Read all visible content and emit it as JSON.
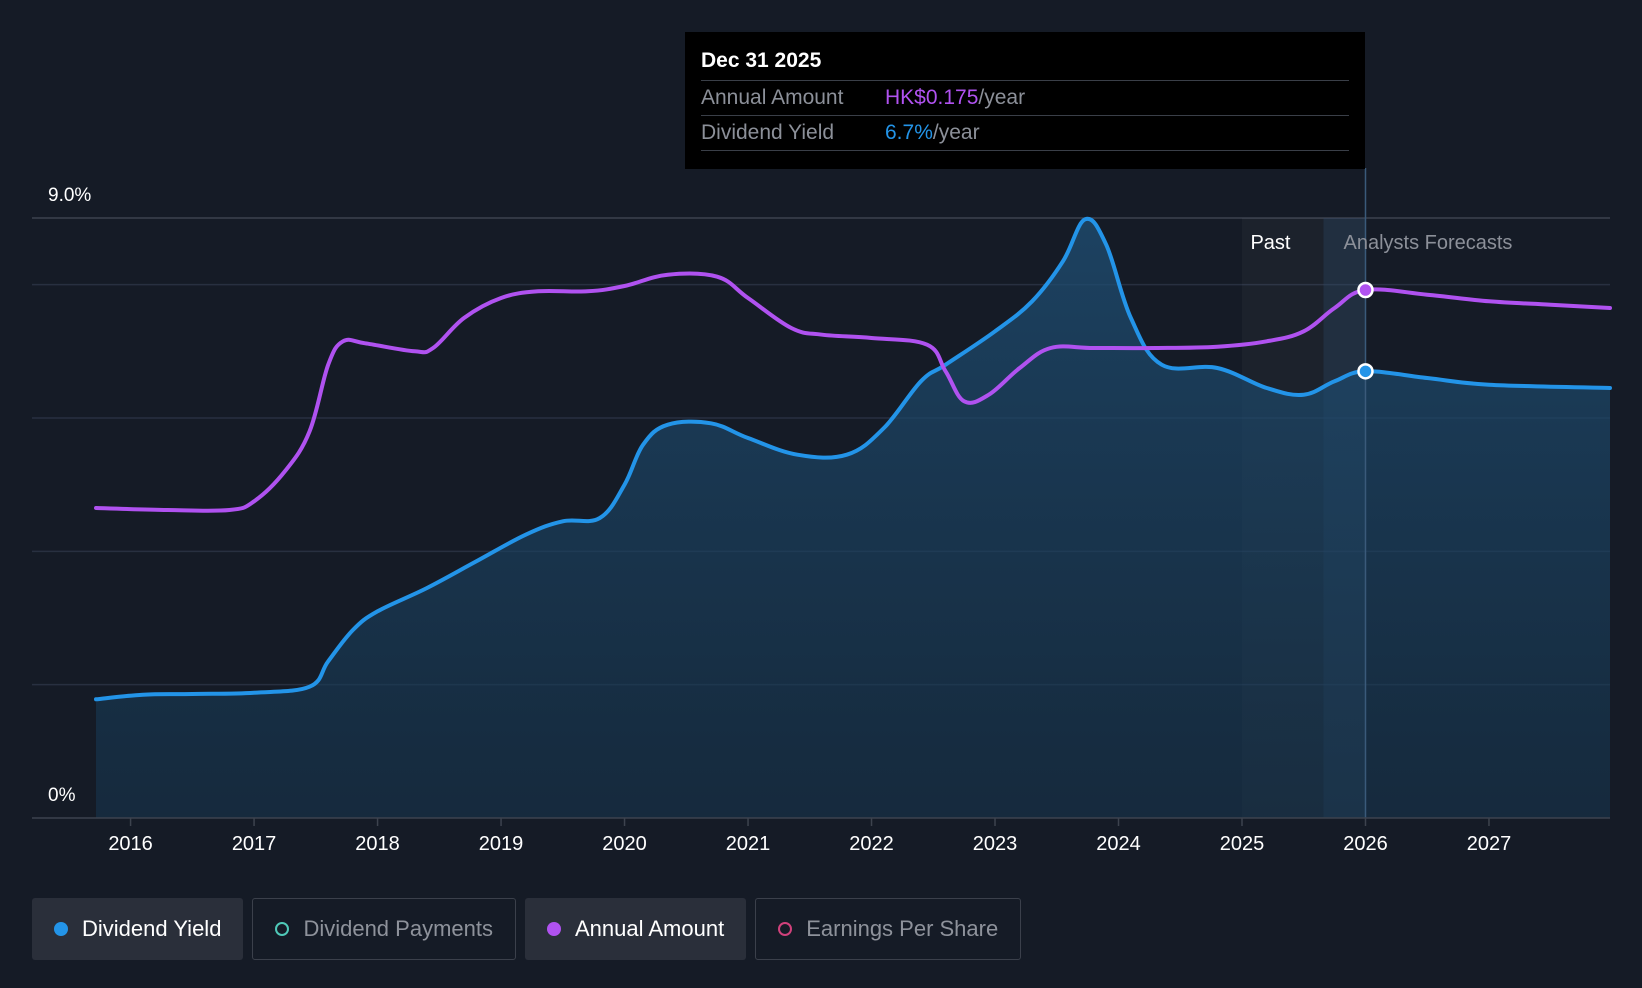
{
  "tooltip": {
    "date": "Dec 31 2025",
    "amount_label": "Annual Amount",
    "amount_value": "HK$0.175",
    "amount_unit": "/year",
    "yield_label": "Dividend Yield",
    "yield_value": "6.7%",
    "yield_unit": "/year"
  },
  "legend": [
    {
      "label": "Dividend Yield",
      "color": "#2394e8",
      "active": true,
      "filled": true
    },
    {
      "label": "Dividend Payments",
      "color": "#4fc9b8",
      "active": false,
      "filled": false
    },
    {
      "label": "Annual Amount",
      "color": "#b052f0",
      "active": true,
      "filled": true
    },
    {
      "label": "Earnings Per Share",
      "color": "#d0417b",
      "active": false,
      "filled": false
    }
  ],
  "chart_data": {
    "type": "line",
    "title": "",
    "y_axis": {
      "min": 0,
      "max": 9.0,
      "unit": "%",
      "tick_labels": [
        "0%",
        "9.0%"
      ]
    },
    "x_axis": {
      "min": 2015.72,
      "max": 2027.98,
      "tick_labels": [
        "2016",
        "2017",
        "2018",
        "2019",
        "2020",
        "2021",
        "2022",
        "2023",
        "2024",
        "2025",
        "2026",
        "2027"
      ],
      "ticks": [
        2016,
        2017,
        2018,
        2019,
        2020,
        2021,
        2022,
        2023,
        2024,
        2025,
        2026,
        2027
      ]
    },
    "region_labels": {
      "past": "Past",
      "forecast": "Analysts Forecasts"
    },
    "past_band": {
      "start": 2025.0,
      "end": 2026.0
    },
    "marker_x": 2026.0,
    "series": [
      {
        "name": "Dividend Yield",
        "color": "#2394e8",
        "fill": true,
        "points": [
          [
            2015.72,
            1.78
          ],
          [
            2016.1,
            1.85
          ],
          [
            2016.5,
            1.86
          ],
          [
            2017.0,
            1.88
          ],
          [
            2017.45,
            1.97
          ],
          [
            2017.6,
            2.35
          ],
          [
            2017.8,
            2.82
          ],
          [
            2018.0,
            3.1
          ],
          [
            2018.4,
            3.45
          ],
          [
            2018.8,
            3.85
          ],
          [
            2019.2,
            4.25
          ],
          [
            2019.5,
            4.45
          ],
          [
            2019.8,
            4.5
          ],
          [
            2020.0,
            5.0
          ],
          [
            2020.15,
            5.6
          ],
          [
            2020.35,
            5.9
          ],
          [
            2020.7,
            5.92
          ],
          [
            2021.0,
            5.7
          ],
          [
            2021.4,
            5.45
          ],
          [
            2021.8,
            5.45
          ],
          [
            2022.1,
            5.85
          ],
          [
            2022.4,
            6.55
          ],
          [
            2022.6,
            6.8
          ],
          [
            2023.0,
            7.3
          ],
          [
            2023.3,
            7.75
          ],
          [
            2023.55,
            8.35
          ],
          [
            2023.73,
            8.98
          ],
          [
            2023.9,
            8.6
          ],
          [
            2024.1,
            7.5
          ],
          [
            2024.35,
            6.8
          ],
          [
            2024.8,
            6.75
          ],
          [
            2025.2,
            6.45
          ],
          [
            2025.5,
            6.35
          ],
          [
            2025.75,
            6.55
          ],
          [
            2026.0,
            6.7
          ],
          [
            2026.5,
            6.6
          ],
          [
            2027.0,
            6.5
          ],
          [
            2027.98,
            6.45
          ]
        ]
      },
      {
        "name": "Annual Amount",
        "color": "#b052f0",
        "fill": false,
        "points": [
          [
            2015.72,
            4.65
          ],
          [
            2016.3,
            4.62
          ],
          [
            2016.8,
            4.62
          ],
          [
            2017.0,
            4.75
          ],
          [
            2017.25,
            5.2
          ],
          [
            2017.45,
            5.8
          ],
          [
            2017.6,
            6.8
          ],
          [
            2017.72,
            7.15
          ],
          [
            2017.9,
            7.12
          ],
          [
            2018.3,
            7.0
          ],
          [
            2018.45,
            7.05
          ],
          [
            2018.7,
            7.5
          ],
          [
            2019.0,
            7.8
          ],
          [
            2019.3,
            7.9
          ],
          [
            2019.7,
            7.9
          ],
          [
            2020.0,
            7.98
          ],
          [
            2020.35,
            8.15
          ],
          [
            2020.75,
            8.12
          ],
          [
            2021.0,
            7.8
          ],
          [
            2021.35,
            7.35
          ],
          [
            2021.6,
            7.25
          ],
          [
            2022.0,
            7.2
          ],
          [
            2022.45,
            7.1
          ],
          [
            2022.6,
            6.7
          ],
          [
            2022.75,
            6.25
          ],
          [
            2022.95,
            6.35
          ],
          [
            2023.2,
            6.75
          ],
          [
            2023.45,
            7.05
          ],
          [
            2023.8,
            7.05
          ],
          [
            2024.3,
            7.05
          ],
          [
            2024.8,
            7.07
          ],
          [
            2025.2,
            7.15
          ],
          [
            2025.5,
            7.3
          ],
          [
            2025.75,
            7.65
          ],
          [
            2026.0,
            7.92
          ],
          [
            2026.5,
            7.85
          ],
          [
            2027.0,
            7.75
          ],
          [
            2027.5,
            7.7
          ],
          [
            2027.98,
            7.65
          ]
        ]
      }
    ]
  }
}
